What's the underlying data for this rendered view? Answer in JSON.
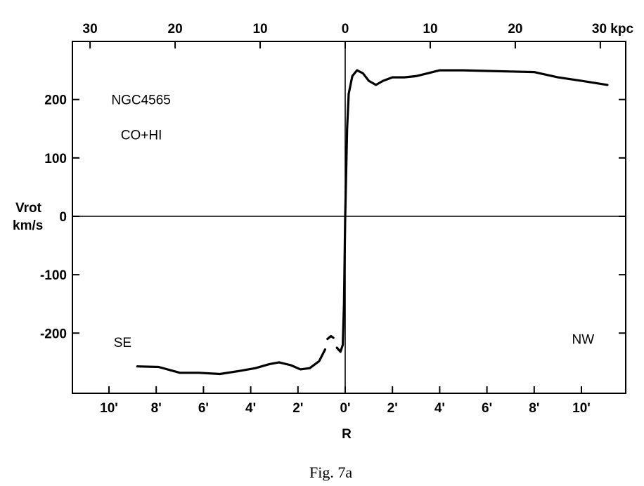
{
  "chart_data": {
    "type": "line",
    "xlabel": "R",
    "ylabel": [
      "Vrot",
      "km/s"
    ],
    "xlim": [
      -11.5,
      11.5
    ],
    "ylim": [
      -300,
      300
    ],
    "y_ticks": [
      {
        "value": 200,
        "label": "200"
      },
      {
        "value": 100,
        "label": "100"
      },
      {
        "value": 0,
        "label": "0"
      },
      {
        "value": -100,
        "label": "-100"
      },
      {
        "value": -200,
        "label": "-200"
      }
    ],
    "x_ticks_bottom": [
      {
        "value": -10,
        "label": "10'"
      },
      {
        "value": -8,
        "label": "8'"
      },
      {
        "value": -6,
        "label": "6'"
      },
      {
        "value": -4,
        "label": "4'"
      },
      {
        "value": -2,
        "label": "2'"
      },
      {
        "value": 0,
        "label": "0'"
      },
      {
        "value": 2,
        "label": "2'"
      },
      {
        "value": 4,
        "label": "4'"
      },
      {
        "value": 6,
        "label": "6'"
      },
      {
        "value": 8,
        "label": "8'"
      },
      {
        "value": 10,
        "label": "10'"
      }
    ],
    "x_ticks_top": [
      {
        "value": -10.8,
        "label": "30"
      },
      {
        "value": -7.2,
        "label": "20"
      },
      {
        "value": -3.6,
        "label": "10"
      },
      {
        "value": 0,
        "label": "0"
      },
      {
        "value": 3.6,
        "label": "10"
      },
      {
        "value": 7.2,
        "label": "20"
      },
      {
        "value": 10.8,
        "label": "30 kpc"
      }
    ],
    "annotations": [
      {
        "text": "NGC4565",
        "x": -9.9,
        "y": 200
      },
      {
        "text": "CO+HI",
        "x": -9.5,
        "y": 140
      },
      {
        "text": "SE",
        "x": -9.8,
        "y": -215
      },
      {
        "text": "NW",
        "x": 9.6,
        "y": -210
      }
    ],
    "grid": false,
    "reference_lines": {
      "x": 0,
      "y": 0
    },
    "series": [
      {
        "style": "solid",
        "points": [
          [
            -8.8,
            -257
          ],
          [
            -7.9,
            -258
          ],
          [
            -7.0,
            -268
          ],
          [
            -6.2,
            -268
          ],
          [
            -5.3,
            -270
          ],
          [
            -4.5,
            -265
          ],
          [
            -3.8,
            -260
          ],
          [
            -3.2,
            -253
          ],
          [
            -2.8,
            -250
          ],
          [
            -2.3,
            -255
          ],
          [
            -1.9,
            -262
          ],
          [
            -1.5,
            -260
          ],
          [
            -1.1,
            -248
          ],
          [
            -0.85,
            -228
          ]
        ]
      },
      {
        "style": "solid",
        "points": [
          [
            -0.75,
            -210
          ],
          [
            -0.6,
            -205
          ],
          [
            -0.5,
            -208
          ]
        ]
      },
      {
        "style": "solid",
        "points": [
          [
            -0.35,
            -225
          ],
          [
            -0.2,
            -232
          ],
          [
            -0.1,
            -220
          ],
          [
            -0.05,
            -150
          ],
          [
            0,
            0
          ],
          [
            0.08,
            150
          ],
          [
            0.15,
            210
          ],
          [
            0.3,
            240
          ],
          [
            0.5,
            250
          ],
          [
            0.75,
            245
          ],
          [
            1.0,
            232
          ],
          [
            1.3,
            225
          ],
          [
            1.6,
            232
          ],
          [
            2.0,
            238
          ],
          [
            2.5,
            238
          ],
          [
            3.0,
            240
          ],
          [
            3.5,
            245
          ],
          [
            4.0,
            250
          ],
          [
            5.0,
            250
          ],
          [
            6.0,
            249
          ],
          [
            7.0,
            248
          ],
          [
            8.0,
            247
          ],
          [
            9.0,
            238
          ],
          [
            10.0,
            232
          ],
          [
            11.1,
            225
          ]
        ]
      }
    ]
  },
  "caption": "Fig. 7a"
}
